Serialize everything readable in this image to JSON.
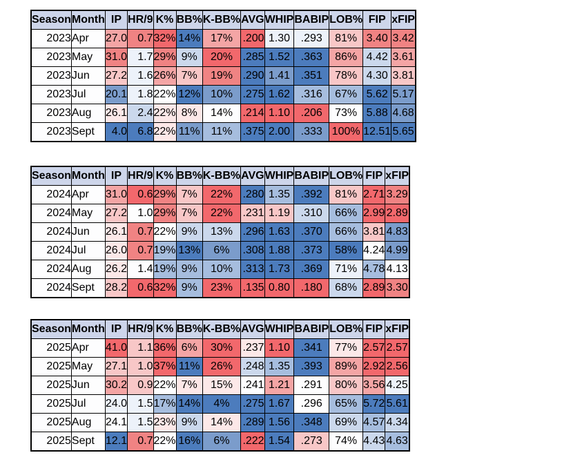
{
  "colors": {
    "header_bg": "#cdd5ea",
    "border": "#000000",
    "text": "#000000",
    "scale": {
      "r5": "#f2686c",
      "r4": "#f08383",
      "r3": "#f4a5a5",
      "r2": "#f8c7c7",
      "r1": "#fce8e8",
      "w": "#fdfdfe",
      "b1": "#edf2fa",
      "b2": "#cbd8ec",
      "b3": "#a6bdde",
      "b4": "#7b9ccb",
      "b5": "#4c7cbd"
    }
  },
  "chart_data": [
    {
      "type": "table",
      "title": "2023",
      "columns": [
        "Season",
        "Month",
        "IP",
        "HR/9",
        "K%",
        "BB%",
        "K-BB%",
        "AVG",
        "WHIP",
        "BABIP",
        "LOB%",
        "FIP",
        "xFIP"
      ],
      "rows": [
        [
          "2023",
          "Apr",
          "27.0",
          "0.7",
          "32%",
          "14%",
          "17%",
          ".200",
          "1.30",
          ".293",
          "81%",
          "3.40",
          "3.42"
        ],
        [
          "2023",
          "May",
          "31.0",
          "1.7",
          "29%",
          "9%",
          "20%",
          ".285",
          "1.52",
          ".363",
          "86%",
          "4.42",
          "3.61"
        ],
        [
          "2023",
          "Jun",
          "27.2",
          "1.6",
          "26%",
          "7%",
          "19%",
          ".290",
          "1.41",
          ".351",
          "78%",
          "4.30",
          "3.81"
        ],
        [
          "2023",
          "Jul",
          "20.1",
          "1.8",
          "22%",
          "12%",
          "10%",
          ".275",
          "1.62",
          ".316",
          "67%",
          "5.62",
          "5.17"
        ],
        [
          "2023",
          "Aug",
          "26.1",
          "2.4",
          "22%",
          "8%",
          "14%",
          ".214",
          "1.10",
          ".206",
          "73%",
          "5.88",
          "4.68"
        ],
        [
          "2023",
          "Sept",
          "4.0",
          "6.8",
          "22%",
          "11%",
          "11%",
          ".375",
          "2.00",
          ".333",
          "100%",
          "12.51",
          "5.65"
        ]
      ],
      "heat": [
        [
          "w",
          "w",
          "r3",
          "r4",
          "r5",
          "b5",
          "r3",
          "r5",
          "b1",
          "b1",
          "r2",
          "r4",
          "r4"
        ],
        [
          "w",
          "w",
          "r4",
          "b1",
          "r4",
          "b2",
          "r5",
          "b5",
          "b5",
          "b5",
          "r3",
          "b2",
          "r3"
        ],
        [
          "w",
          "w",
          "r2",
          "b1",
          "r3",
          "r2",
          "r4",
          "b5",
          "b4",
          "b5",
          "r2",
          "b2",
          "r2"
        ],
        [
          "w",
          "w",
          "b4",
          "b1",
          "w",
          "b5",
          "b4",
          "b5",
          "b5",
          "b3",
          "b3",
          "b5",
          "b4"
        ],
        [
          "w",
          "w",
          "r1",
          "b2",
          "r1",
          "r1",
          "w",
          "r5",
          "r5",
          "r5",
          "w",
          "b5",
          "b4"
        ],
        [
          "w",
          "w",
          "b5",
          "b5",
          "r1",
          "b4",
          "b3",
          "b5",
          "b5",
          "b4",
          "r5",
          "b5",
          "b5"
        ]
      ]
    },
    {
      "type": "table",
      "title": "2024",
      "columns": [
        "Season",
        "Month",
        "IP",
        "HR/9",
        "K%",
        "BB%",
        "K-BB%",
        "AVG",
        "WHIP",
        "BABIP",
        "LOB%",
        "FIP",
        "xFIP"
      ],
      "rows": [
        [
          "2024",
          "Apr",
          "31.0",
          "0.6",
          "29%",
          "7%",
          "22%",
          ".280",
          "1.35",
          ".392",
          "81%",
          "2.71",
          "3.29"
        ],
        [
          "2024",
          "May",
          "27.2",
          "1.0",
          "29%",
          "7%",
          "22%",
          ".231",
          "1.19",
          ".310",
          "66%",
          "2.99",
          "2.89"
        ],
        [
          "2024",
          "Jun",
          "26.1",
          "0.7",
          "22%",
          "9%",
          "13%",
          ".296",
          "1.63",
          ".370",
          "66%",
          "3.81",
          "4.83"
        ],
        [
          "2024",
          "Jul",
          "26.0",
          "0.7",
          "19%",
          "13%",
          "6%",
          ".308",
          "1.88",
          ".373",
          "58%",
          "4.24",
          "4.99"
        ],
        [
          "2024",
          "Aug",
          "26.2",
          "1.4",
          "19%",
          "9%",
          "10%",
          ".313",
          "1.73",
          ".369",
          "71%",
          "4.78",
          "4.13"
        ],
        [
          "2024",
          "Sept",
          "28.2",
          "0.6",
          "32%",
          "9%",
          "23%",
          ".135",
          "0.80",
          ".180",
          "68%",
          "2.89",
          "3.30"
        ]
      ],
      "heat": [
        [
          "w",
          "w",
          "r3",
          "r5",
          "r4",
          "r2",
          "r5",
          "b5",
          "b3",
          "b5",
          "r2",
          "r5",
          "r4"
        ],
        [
          "w",
          "w",
          "r2",
          "w",
          "r4",
          "r2",
          "r5",
          "r2",
          "r2",
          "b2",
          "b3",
          "r5",
          "r5"
        ],
        [
          "w",
          "w",
          "r1",
          "r4",
          "w",
          "b2",
          "b2",
          "b5",
          "b5",
          "b5",
          "b3",
          "r2",
          "b4"
        ],
        [
          "w",
          "w",
          "r1",
          "r4",
          "b3",
          "b5",
          "b4",
          "b5",
          "b5",
          "b5",
          "b5",
          "w",
          "b4"
        ],
        [
          "w",
          "w",
          "r1",
          "w",
          "b3",
          "b3",
          "b3",
          "b5",
          "b5",
          "b5",
          "b1",
          "b3",
          "w"
        ],
        [
          "w",
          "w",
          "r2",
          "r5",
          "r5",
          "b3",
          "r5",
          "r5",
          "r5",
          "r5",
          "b2",
          "r5",
          "r4"
        ]
      ]
    },
    {
      "type": "table",
      "title": "2025",
      "columns": [
        "Season",
        "Month",
        "IP",
        "HR/9",
        "K%",
        "BB%",
        "K-BB%",
        "AVG",
        "WHIP",
        "BABIP",
        "LOB%",
        "FIP",
        "xFIP"
      ],
      "rows": [
        [
          "2025",
          "Apr",
          "41.0",
          "1.1",
          "36%",
          "6%",
          "30%",
          ".237",
          "1.10",
          ".341",
          "77%",
          "2.57",
          "2.57"
        ],
        [
          "2025",
          "May",
          "27.1",
          "1.0",
          "37%",
          "11%",
          "26%",
          ".248",
          "1.35",
          ".393",
          "89%",
          "2.92",
          "2.56"
        ],
        [
          "2025",
          "Jun",
          "30.2",
          "0.9",
          "22%",
          "7%",
          "15%",
          ".241",
          "1.21",
          ".291",
          "80%",
          "3.56",
          "4.25"
        ],
        [
          "2025",
          "Jul",
          "24.0",
          "1.5",
          "17%",
          "14%",
          "4%",
          ".275",
          "1.67",
          ".296",
          "65%",
          "5.72",
          "5.61"
        ],
        [
          "2025",
          "Aug",
          "24.1",
          "1.5",
          "23%",
          "9%",
          "14%",
          ".289",
          "1.56",
          ".348",
          "69%",
          "4.57",
          "4.34"
        ],
        [
          "2025",
          "Sept",
          "12.1",
          "0.7",
          "22%",
          "16%",
          "6%",
          ".222",
          "1.54",
          ".273",
          "74%",
          "4.43",
          "4.63"
        ]
      ],
      "heat": [
        [
          "w",
          "w",
          "r5",
          "r2",
          "r5",
          "r3",
          "r5",
          "r1",
          "r5",
          "b5",
          "r1",
          "r5",
          "r5"
        ],
        [
          "w",
          "w",
          "r2",
          "r2",
          "r5",
          "b5",
          "r5",
          "b2",
          "b3",
          "b5",
          "r3",
          "r5",
          "r5"
        ],
        [
          "w",
          "w",
          "r3",
          "r2",
          "w",
          "r1",
          "r1",
          "w",
          "r3",
          "w",
          "r2",
          "r3",
          "b1"
        ],
        [
          "w",
          "w",
          "b1",
          "b1",
          "b3",
          "b5",
          "b5",
          "b5",
          "b5",
          "w",
          "b3",
          "b5",
          "b5"
        ],
        [
          "w",
          "w",
          "w",
          "b1",
          "r1",
          "b2",
          "r1",
          "b5",
          "b5",
          "b5",
          "b2",
          "b3",
          "b2"
        ],
        [
          "w",
          "w",
          "b5",
          "r4",
          "w",
          "b5",
          "b4",
          "r5",
          "b5",
          "r2",
          "w",
          "b2",
          "b3"
        ]
      ]
    }
  ]
}
